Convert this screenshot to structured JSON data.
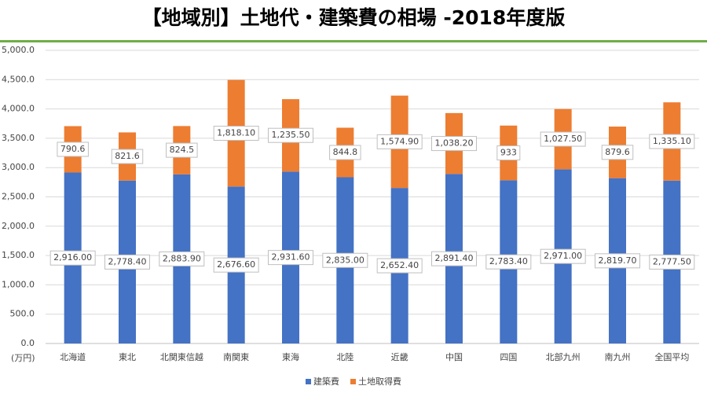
{
  "chart_data": {
    "type": "stacked_bar",
    "title": "【地域別】土地代・建築費の相場 -2018年度版",
    "y_unit": "(万円)",
    "categories": [
      "北海道",
      "東北",
      "北関東信越",
      "南関東",
      "東海",
      "北陸",
      "近畿",
      "中国",
      "四国",
      "北部九州",
      "南九州",
      "全国平均"
    ],
    "series": [
      {
        "name": "建築費",
        "color": "#4472c4",
        "values": [
          2916.0,
          2778.4,
          2883.9,
          2676.6,
          2931.6,
          2835.0,
          2652.4,
          2891.4,
          2783.4,
          2971.0,
          2819.7,
          2777.5
        ],
        "value_labels": [
          "2,916.00",
          "2,778.40",
          "2,883.90",
          "2,676.60",
          "2,931.60",
          "2,835.00",
          "2,652.40",
          "2,891.40",
          "2,783.40",
          "2,971.00",
          "2,819.70",
          "2,777.50"
        ]
      },
      {
        "name": "土地取得費",
        "color": "#ed7d31",
        "values": [
          790.6,
          821.6,
          824.5,
          1818.1,
          1235.5,
          844.8,
          1574.9,
          1038.2,
          933,
          1027.5,
          879.6,
          1335.1
        ],
        "value_labels": [
          "790.6",
          "821.6",
          "824.5",
          "1,818.10",
          "1,235.50",
          "844.8",
          "1,574.90",
          "1,038.20",
          "933",
          "1,027.50",
          "879.6",
          "1,335.10"
        ]
      }
    ],
    "ylim": [
      0,
      5000
    ],
    "yticks": [
      {
        "value": 0,
        "label": "0.0"
      },
      {
        "value": 500,
        "label": "500.0"
      },
      {
        "value": 1000,
        "label": "1,000.0"
      },
      {
        "value": 1500,
        "label": "1,500.0"
      },
      {
        "value": 2000,
        "label": "2,000.0"
      },
      {
        "value": 2500,
        "label": "2,500.0"
      },
      {
        "value": 3000,
        "label": "3,000.0"
      },
      {
        "value": 3500,
        "label": "3,500.0"
      },
      {
        "value": 4000,
        "label": "4,000.0"
      },
      {
        "value": 4500,
        "label": "4,500.0"
      },
      {
        "value": 5000,
        "label": "5,000.0"
      }
    ],
    "grid": true,
    "legend": "bottom"
  }
}
